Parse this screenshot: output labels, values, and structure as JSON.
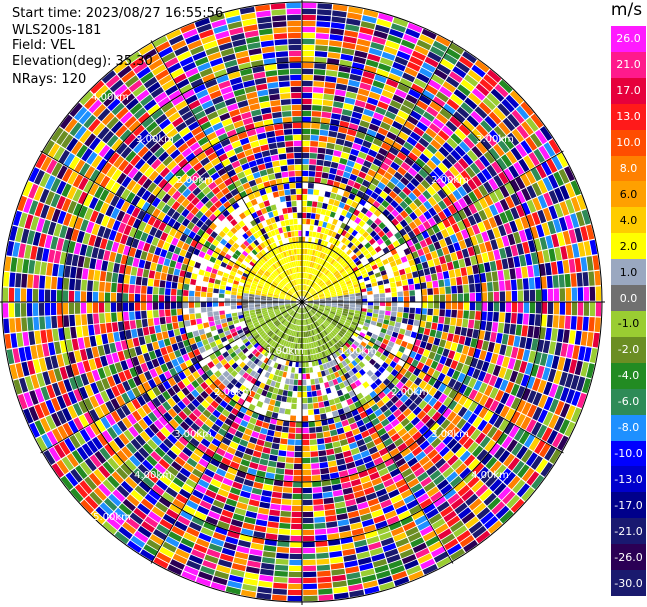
{
  "header": {
    "start_time": "Start time: 2023/08/27 16:55:56",
    "station": "WLS200s-181",
    "field": "Field: VEL",
    "elevation": "Elevation(deg): 35.30",
    "nrays": "NRays: 120"
  },
  "chart_data": {
    "type": "heatmap",
    "projection": "polar-ppi",
    "unit": "m/s",
    "nrays": 120,
    "n_range_rings_labeled": 8,
    "range_labels": [
      "1.00km",
      "2.00km",
      "3.00km",
      "4.00km",
      "5.00km",
      "6.00km",
      "7.00km",
      "8.00km"
    ],
    "colorbar": {
      "labels": [
        "26.0",
        "21.0",
        "17.0",
        "13.0",
        "10.0",
        "8.0",
        "6.0",
        "4.0",
        "2.0",
        "1.0",
        "0.0",
        "-1.0",
        "-2.0",
        "-4.0",
        "-6.0",
        "-8.0",
        "-10.0",
        "-13.0",
        "-17.0",
        "-21.0",
        "-26.0",
        "-30.0"
      ],
      "colors": [
        "#ff1aff",
        "#ff1a8c",
        "#e6003c",
        "#ff1a1a",
        "#ff4d00",
        "#ff8000",
        "#ffa000",
        "#ffcc00",
        "#ffff00",
        "#9aa8c0",
        "#707070",
        "#9acd32",
        "#6b8e23",
        "#228b22",
        "#2e8b57",
        "#1e90ff",
        "#0000ff",
        "#0000cd",
        "#00008b",
        "#191970",
        "#2b0055",
        "#1a1a6e"
      ]
    },
    "near_field_description_values": {
      "inner_north_dominant": [
        "2.0",
        "4.0"
      ],
      "inner_south_dominant": [
        "-1.0",
        "-2.0"
      ],
      "inner_east_west_dominant": [
        "0.0",
        "1.0"
      ]
    }
  }
}
